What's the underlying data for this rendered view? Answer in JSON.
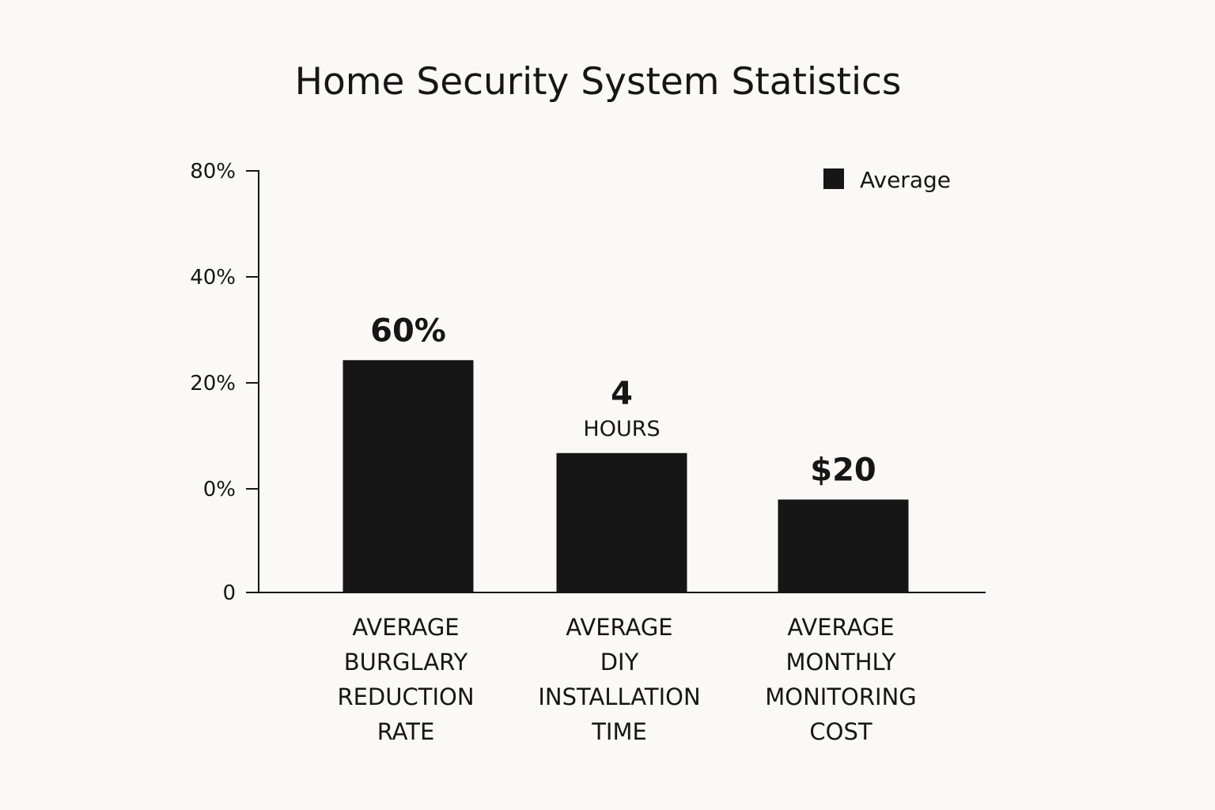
{
  "chart_data": {
    "type": "bar",
    "title": "Home Security System Statistics",
    "xlabel": "",
    "ylabel": "",
    "y_ticks": [
      "0",
      "0%",
      "20%",
      "40%",
      "80%"
    ],
    "legend": {
      "position": "top-right",
      "entries": [
        "Average"
      ]
    },
    "bar_color": "#161616",
    "grid": false,
    "categories": [
      [
        "AVERAGE",
        "BURGLARY",
        "REDUCTION",
        "RATE"
      ],
      [
        "AVERAGE",
        "DIY",
        "INSTALLATION",
        "TIME"
      ],
      [
        "AVERAGE",
        "MONTHLY",
        "MONITORING",
        "COST"
      ]
    ],
    "values": [
      60,
      4,
      20
    ],
    "value_labels": [
      {
        "main": "60%",
        "sub": ""
      },
      {
        "main": "4",
        "sub": "HOURS"
      },
      {
        "main": "$20",
        "sub": ""
      }
    ],
    "units": [
      "%",
      "hours",
      "$"
    ],
    "bar_levels": [
      0.55,
      0.33,
      0.22
    ]
  }
}
